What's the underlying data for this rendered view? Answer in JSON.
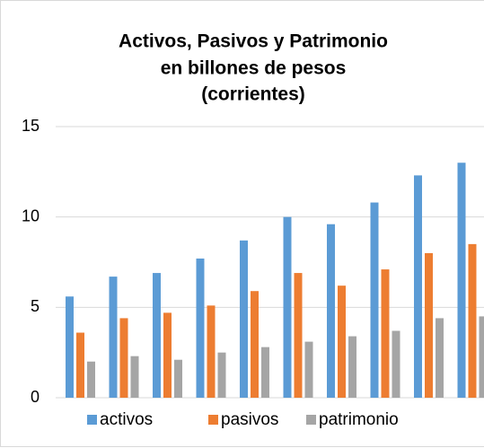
{
  "chart_data": {
    "type": "bar",
    "title": [
      "Activos, Pasivos y Patrimonio",
      "en billones de pesos",
      "(corrientes)"
    ],
    "categories": [
      null,
      null,
      null,
      null,
      null,
      null,
      null,
      null,
      null,
      null
    ],
    "series": [
      {
        "name": "activos",
        "color": "#5b9bd5",
        "values": [
          5.6,
          6.7,
          6.9,
          7.7,
          8.7,
          10.0,
          9.6,
          10.8,
          12.3,
          13.0
        ]
      },
      {
        "name": "pasivos",
        "color": "#ed7d31",
        "values": [
          3.6,
          4.4,
          4.7,
          5.1,
          5.9,
          6.9,
          6.2,
          7.1,
          8.0,
          8.5
        ]
      },
      {
        "name": "patrimonio",
        "color": "#a5a5a5",
        "values": [
          2.0,
          2.3,
          2.1,
          2.5,
          2.8,
          3.1,
          3.4,
          3.7,
          4.4,
          4.5
        ]
      }
    ],
    "ylim": [
      0,
      15
    ],
    "yticks": [
      0,
      5,
      10,
      15
    ],
    "grid": true,
    "legend": "bottom"
  }
}
